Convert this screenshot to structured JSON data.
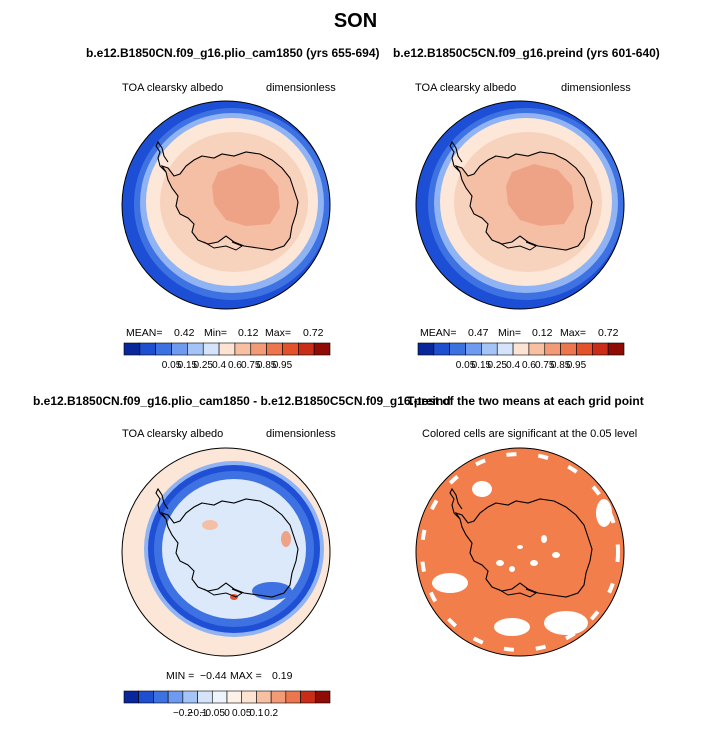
{
  "figure": {
    "title": "SON"
  },
  "chart_data": [
    {
      "type": "heatmap",
      "projection": "south-polar-stereographic",
      "panel_title": "b.e12.B1850CN.f09_g16.plio_cam1850 (yrs 655-694)",
      "field_label": "TOA clearsky albedo",
      "units_label": "dimensionless",
      "stats": [
        {
          "label": "MEAN=",
          "value": "0.42"
        },
        {
          "label": "Min=",
          "value": "0.12"
        },
        {
          "label": "Max=",
          "value": "0.72"
        }
      ],
      "colorbar": {
        "levels": [
          "0.05",
          "0.15",
          "0.25",
          "0.4",
          "0.6",
          "0.75",
          "0.85",
          "0.95"
        ],
        "colors": [
          "#08279a",
          "#1e4fd0",
          "#3c72e0",
          "#6e9bf0",
          "#a4c3f6",
          "#d5e4fb",
          "#fce3d2",
          "#f7c0a3",
          "#f29b76",
          "#ec764e",
          "#e2522b",
          "#c92d17",
          "#8f0b05"
        ]
      }
    },
    {
      "type": "heatmap",
      "projection": "south-polar-stereographic",
      "panel_title": "b.e12.B1850C5CN.f09_g16.preind (yrs 601-640)",
      "field_label": "TOA clearsky albedo",
      "units_label": "dimensionless",
      "stats": [
        {
          "label": "MEAN=",
          "value": "0.47"
        },
        {
          "label": "Min=",
          "value": "0.12"
        },
        {
          "label": "Max=",
          "value": "0.72"
        }
      ],
      "colorbar": {
        "levels": [
          "0.05",
          "0.15",
          "0.25",
          "0.4",
          "0.6",
          "0.75",
          "0.85",
          "0.95"
        ],
        "colors": [
          "#08279a",
          "#1e4fd0",
          "#3c72e0",
          "#6e9bf0",
          "#a4c3f6",
          "#d5e4fb",
          "#fce3d2",
          "#f7c0a3",
          "#f29b76",
          "#ec764e",
          "#e2522b",
          "#c92d17",
          "#8f0b05"
        ]
      }
    },
    {
      "type": "heatmap",
      "projection": "south-polar-stereographic",
      "panel_title": "b.e12.B1850CN.f09_g16.plio_cam1850 - b.e12.B1850C5CN.f09_g16.preind",
      "field_label": "TOA clearsky albedo",
      "units_label": "dimensionless",
      "stats": [
        {
          "label": "MIN =",
          "value": "−0.44"
        },
        {
          "label": "MAX =",
          "value": "0.19"
        }
      ],
      "colorbar": {
        "levels": [
          "−0.2",
          "−0.1",
          "−0.05",
          "0",
          "0.05",
          "0.1",
          "0.2"
        ],
        "colors": [
          "#08279a",
          "#1e4fd0",
          "#3c72e0",
          "#6e9bf0",
          "#a4c3f6",
          "#d5e4fb",
          "#eef4fc",
          "#fdf1e8",
          "#fce3d2",
          "#f7c0a3",
          "#f29b76",
          "#ec764e",
          "#c92d17",
          "#8f0b05"
        ]
      }
    },
    {
      "type": "heatmap",
      "projection": "south-polar-stereographic",
      "panel_title": "T-test of the two means at each grid point",
      "field_label": "Colored cells are significant at the 0.05 level",
      "significance_color": "#f27e4c"
    }
  ],
  "colors": {
    "ocean_deep": "#1d4fd6",
    "ocean_mid": "#3e72e2",
    "ocean_light": "#8fb3f3",
    "sea_ice": "#fde7d8",
    "ice_edge": "#f7d2bc",
    "ice_sheet": "#f4bfa4",
    "ice_plateau": "#eea387",
    "diff_bg": "#fbe6d8",
    "diff_land": "#dce9fb",
    "diff_band": "#1f4fd4",
    "sig": "#f27e4c"
  }
}
